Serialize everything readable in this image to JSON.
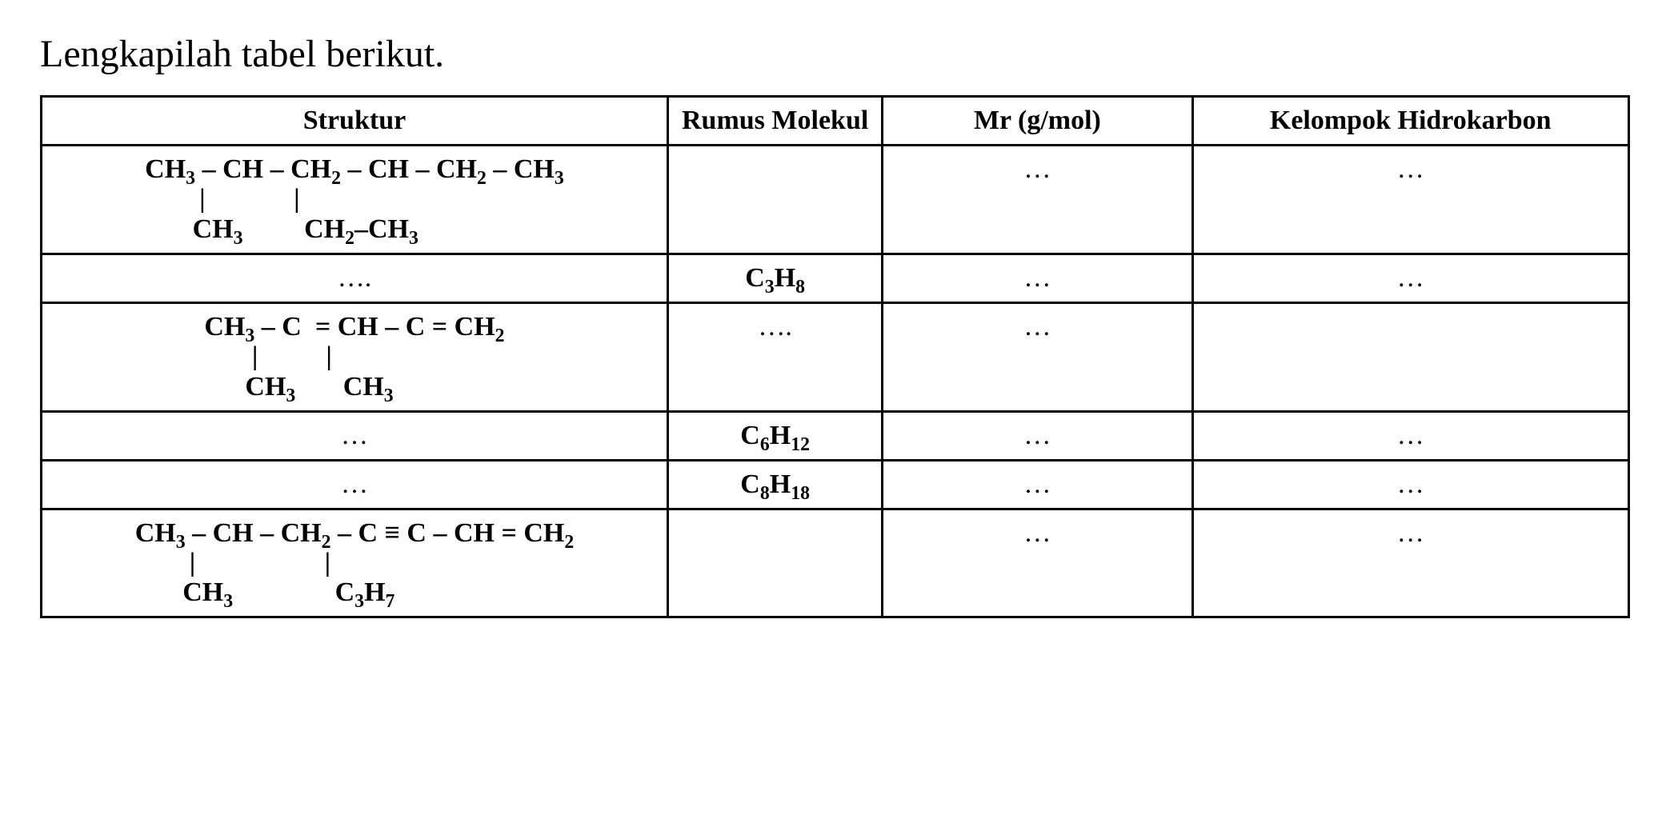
{
  "title": "Lengkapilah tabel berikut.",
  "table": {
    "border_color": "#000000",
    "background_color": "#ffffff",
    "text_color": "#000000",
    "title_fontsize_pt": 36,
    "cell_fontsize_pt": 25,
    "header_fontweight": "bold",
    "columns": [
      {
        "key": "struktur",
        "label": "Struktur",
        "width_pct": 38,
        "align": "center"
      },
      {
        "key": "rumus",
        "label": "Rumus Molekul",
        "width_pct": 12,
        "align": "center"
      },
      {
        "key": "mr",
        "label": "Mr (g/mol)",
        "width_pct": 18,
        "align": "center"
      },
      {
        "key": "kelompok",
        "label": "Kelompok Hidrokarbon",
        "width_pct": 26,
        "align": "center"
      }
    ],
    "rows": [
      {
        "struktur_lines": [
          "CH₃ – CH – CH₂ – CH – CH₂ – CH₃",
          "        |             |",
          "       CH₃         CH₂–CH₃"
        ],
        "rumus": "",
        "mr": "…",
        "kelompok": "…"
      },
      {
        "struktur_lines": [
          "…."
        ],
        "rumus": "C₃H₈",
        "mr": "…",
        "kelompok": "…"
      },
      {
        "struktur_lines": [
          "CH₃ – C  = CH – C = CH₂",
          "       |          |",
          "      CH₃       CH₃"
        ],
        "rumus": "….",
        "mr": "…",
        "kelompok": ""
      },
      {
        "struktur_lines": [
          "…"
        ],
        "rumus": "C₆H₁₂",
        "mr": "…",
        "kelompok": "…"
      },
      {
        "struktur_lines": [
          "…"
        ],
        "rumus": "C₈H₁₈",
        "mr": "…",
        "kelompok": "…"
      },
      {
        "struktur_lines": [
          "CH₃ – CH – CH₂ – C ≡ C – CH = CH₂",
          "        |                   |",
          "       CH₃               C₃H₇"
        ],
        "rumus": "",
        "mr": "…",
        "kelompok": "…"
      }
    ]
  }
}
